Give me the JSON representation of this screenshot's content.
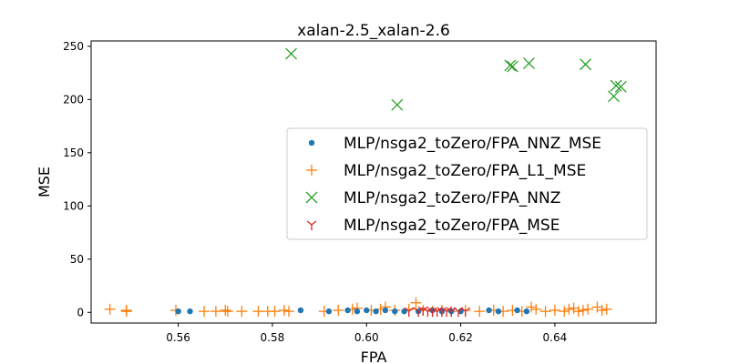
{
  "chart_data": {
    "type": "scatter",
    "title": "xalan-2.5_xalan-2.6",
    "xlabel": "FPA",
    "ylabel": "MSE",
    "xlim": [
      0.5415,
      0.6615
    ],
    "ylim": [
      -10,
      255
    ],
    "xticks": [
      0.56,
      0.58,
      0.6,
      0.62,
      0.64
    ],
    "xtick_labels": [
      "0.56",
      "0.58",
      "0.60",
      "0.62",
      "0.64"
    ],
    "yticks": [
      0,
      50,
      100,
      150,
      200,
      250
    ],
    "ytick_labels": [
      "0",
      "50",
      "100",
      "150",
      "200",
      "250"
    ],
    "grid": false,
    "legend_position": "center-right",
    "series": [
      {
        "name": "MLP/nsga2_toZero/FPA_NNZ_MSE",
        "marker": "dot",
        "color": "#1f77b4",
        "points": [
          [
            0.56,
            1
          ],
          [
            0.5625,
            1
          ],
          [
            0.586,
            2
          ],
          [
            0.592,
            1
          ],
          [
            0.596,
            2
          ],
          [
            0.598,
            1
          ],
          [
            0.6,
            2
          ],
          [
            0.602,
            1
          ],
          [
            0.604,
            2
          ],
          [
            0.606,
            1
          ],
          [
            0.608,
            1
          ],
          [
            0.611,
            1
          ],
          [
            0.614,
            2
          ],
          [
            0.616,
            1
          ],
          [
            0.618,
            1
          ],
          [
            0.62,
            1
          ],
          [
            0.626,
            2
          ],
          [
            0.628,
            1
          ],
          [
            0.632,
            2
          ],
          [
            0.634,
            1
          ]
        ]
      },
      {
        "name": "MLP/nsga2_toZero/FPA_L1_MSE",
        "marker": "plus",
        "color": "#ff7f0e",
        "points": [
          [
            0.5455,
            3
          ],
          [
            0.549,
            1
          ],
          [
            0.549,
            2
          ],
          [
            0.5595,
            2
          ],
          [
            0.5655,
            1
          ],
          [
            0.568,
            1
          ],
          [
            0.57,
            2
          ],
          [
            0.5705,
            1
          ],
          [
            0.5735,
            1
          ],
          [
            0.577,
            1
          ],
          [
            0.579,
            1
          ],
          [
            0.5805,
            1
          ],
          [
            0.5825,
            2
          ],
          [
            0.5835,
            1
          ],
          [
            0.591,
            1
          ],
          [
            0.594,
            2
          ],
          [
            0.597,
            3
          ],
          [
            0.598,
            4
          ],
          [
            0.601,
            2
          ],
          [
            0.603,
            3
          ],
          [
            0.604,
            5
          ],
          [
            0.606,
            2
          ],
          [
            0.609,
            3
          ],
          [
            0.6105,
            9
          ],
          [
            0.612,
            2
          ],
          [
            0.614,
            1
          ],
          [
            0.616,
            2
          ],
          [
            0.618,
            1
          ],
          [
            0.621,
            2
          ],
          [
            0.624,
            1
          ],
          [
            0.627,
            2
          ],
          [
            0.629,
            1
          ],
          [
            0.631,
            2
          ],
          [
            0.633,
            1
          ],
          [
            0.635,
            5
          ],
          [
            0.636,
            3
          ],
          [
            0.638,
            1
          ],
          [
            0.64,
            2
          ],
          [
            0.642,
            1
          ],
          [
            0.643,
            3
          ],
          [
            0.644,
            4
          ],
          [
            0.645,
            1
          ],
          [
            0.646,
            2
          ],
          [
            0.647,
            3
          ],
          [
            0.649,
            5
          ],
          [
            0.65,
            2
          ],
          [
            0.651,
            3
          ]
        ]
      },
      {
        "name": "MLP/nsga2_toZero/FPA_NNZ",
        "marker": "x",
        "color": "#2ca02c",
        "points": [
          [
            0.584,
            243
          ],
          [
            0.6065,
            195
          ],
          [
            0.6305,
            232
          ],
          [
            0.631,
            231
          ],
          [
            0.6345,
            234
          ],
          [
            0.6465,
            233
          ],
          [
            0.6525,
            203
          ],
          [
            0.653,
            213
          ],
          [
            0.654,
            212
          ]
        ]
      },
      {
        "name": "MLP/nsga2_toZero/FPA_MSE",
        "marker": "tri",
        "color": "#d62728",
        "points": [
          [
            0.609,
            1
          ],
          [
            0.611,
            1
          ],
          [
            0.612,
            2
          ],
          [
            0.613,
            1
          ],
          [
            0.614,
            1
          ],
          [
            0.615,
            1
          ],
          [
            0.616,
            1
          ],
          [
            0.617,
            1
          ],
          [
            0.618,
            1
          ],
          [
            0.6195,
            1
          ],
          [
            0.621,
            1
          ]
        ]
      }
    ]
  }
}
